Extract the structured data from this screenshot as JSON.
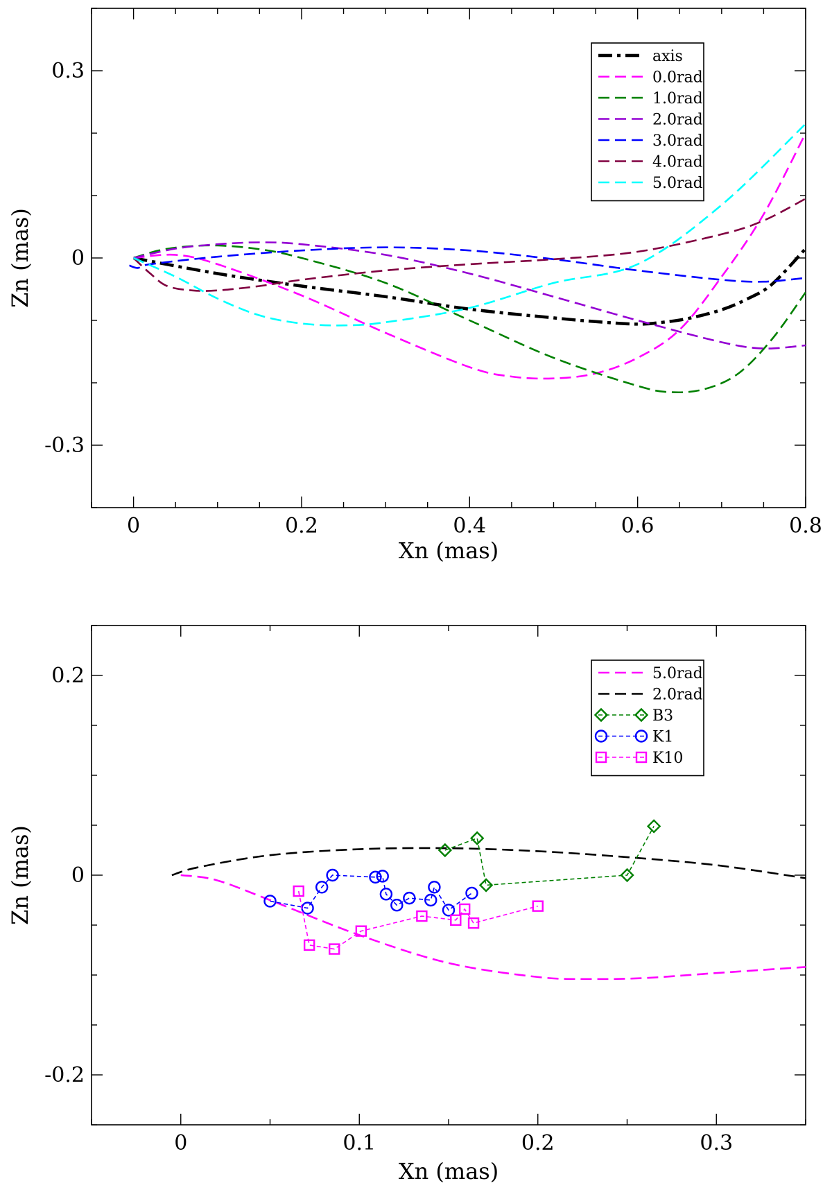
{
  "chart_data": [
    {
      "type": "line",
      "xlabel": "Xn (mas)",
      "ylabel": "Zn (mas)",
      "xlim": [
        -0.05,
        0.8
      ],
      "ylim": [
        -0.4,
        0.4
      ],
      "xticks": [
        0,
        0.2,
        0.4,
        0.6,
        0.8
      ],
      "xtick_labels": [
        "0",
        "0.2",
        "0.4",
        "0.6",
        "0.8"
      ],
      "xminor": 0.05,
      "yticks": [
        -0.3,
        0,
        0.3
      ],
      "ytick_labels": [
        "-0.3",
        "0",
        "0.3"
      ],
      "yminor": 0.1,
      "legend_position": "top-right",
      "series": [
        {
          "name": "axis",
          "color": "#000000",
          "style": "dashdot",
          "x": [
            0,
            0.1,
            0.2,
            0.3,
            0.4,
            0.5,
            0.55,
            0.6,
            0.63,
            0.66,
            0.7,
            0.73,
            0.76,
            0.8
          ],
          "y": [
            0,
            -0.025,
            -0.045,
            -0.062,
            -0.082,
            -0.096,
            -0.102,
            -0.106,
            -0.103,
            -0.097,
            -0.083,
            -0.066,
            -0.042,
            0.015
          ]
        },
        {
          "name": "0.0rad",
          "color": "#ff00ff",
          "style": "dash",
          "x": [
            0,
            0.05,
            0.1,
            0.2,
            0.3,
            0.4,
            0.45,
            0.5,
            0.55,
            0.6,
            0.65,
            0.7,
            0.75,
            0.8
          ],
          "y": [
            0,
            0.005,
            -0.01,
            -0.06,
            -0.12,
            -0.175,
            -0.19,
            -0.193,
            -0.185,
            -0.16,
            -0.115,
            -0.03,
            0.07,
            0.2
          ]
        },
        {
          "name": "1.0rad",
          "color": "#008000",
          "style": "dash",
          "x": [
            0,
            0.03,
            0.06,
            0.1,
            0.15,
            0.2,
            0.3,
            0.4,
            0.5,
            0.6,
            0.64,
            0.68,
            0.72,
            0.76,
            0.8
          ],
          "y": [
            0,
            0.012,
            0.018,
            0.02,
            0.014,
            0,
            -0.04,
            -0.1,
            -0.16,
            -0.205,
            -0.215,
            -0.21,
            -0.185,
            -0.13,
            -0.055
          ]
        },
        {
          "name": "2.0rad",
          "color": "#9400d3",
          "style": "dash",
          "x": [
            0,
            0.05,
            0.1,
            0.15,
            0.2,
            0.3,
            0.4,
            0.5,
            0.6,
            0.7,
            0.75,
            0.8
          ],
          "y": [
            0,
            0.015,
            0.022,
            0.025,
            0.022,
            0.005,
            -0.025,
            -0.062,
            -0.1,
            -0.135,
            -0.145,
            -0.14
          ]
        },
        {
          "name": "3.0rad",
          "color": "#0000ff",
          "style": "dash",
          "x": [
            -0.005,
            0.005,
            0.02,
            0.1,
            0.2,
            0.3,
            0.4,
            0.5,
            0.6,
            0.7,
            0.75,
            0.8
          ],
          "y": [
            -0.012,
            -0.016,
            -0.01,
            0.002,
            0.012,
            0.017,
            0.012,
            -0.002,
            -0.02,
            -0.035,
            -0.038,
            -0.032
          ]
        },
        {
          "name": "4.0rad",
          "color": "#800040",
          "style": "dash",
          "x": [
            0,
            0.02,
            0.04,
            0.07,
            0.1,
            0.15,
            0.2,
            0.3,
            0.4,
            0.5,
            0.6,
            0.7,
            0.75,
            0.8
          ],
          "y": [
            0,
            -0.025,
            -0.045,
            -0.052,
            -0.052,
            -0.045,
            -0.035,
            -0.02,
            -0.01,
            -0.002,
            0.01,
            0.038,
            0.06,
            0.095
          ]
        },
        {
          "name": "5.0rad",
          "color": "#00ffff",
          "style": "dash",
          "x": [
            0,
            0.05,
            0.1,
            0.15,
            0.2,
            0.25,
            0.3,
            0.4,
            0.5,
            0.6,
            0.7,
            0.8
          ],
          "y": [
            0,
            -0.03,
            -0.065,
            -0.092,
            -0.105,
            -0.108,
            -0.103,
            -0.08,
            -0.04,
            -0.01,
            0.085,
            0.215
          ]
        }
      ]
    },
    {
      "type": "scatter",
      "xlabel": "Xn (mas)",
      "ylabel": "Zn (mas)",
      "xlim": [
        -0.05,
        0.35
      ],
      "ylim": [
        -0.25,
        0.25
      ],
      "xticks": [
        0,
        0.1,
        0.2,
        0.3
      ],
      "xtick_labels": [
        "0",
        "0.1",
        "0.2",
        "0.3"
      ],
      "xminor": 0.05,
      "yticks": [
        -0.2,
        0,
        0.2
      ],
      "ytick_labels": [
        "-0.2",
        "0",
        "0.2"
      ],
      "yminor": 0.05,
      "legend_position": "top-right",
      "series": [
        {
          "name": "5.0rad",
          "color": "#ff00ff",
          "style": "dash",
          "x": [
            0,
            0.02,
            0.05,
            0.1,
            0.15,
            0.2,
            0.23,
            0.26,
            0.3,
            0.35
          ],
          "y": [
            0,
            -0.005,
            -0.025,
            -0.06,
            -0.088,
            -0.102,
            -0.104,
            -0.103,
            -0.098,
            -0.092
          ]
        },
        {
          "name": "2.0rad",
          "color": "#000000",
          "style": "dash",
          "x": [
            -0.005,
            0.01,
            0.05,
            0.1,
            0.15,
            0.2,
            0.25,
            0.3,
            0.35
          ],
          "y": [
            0,
            0.008,
            0.02,
            0.026,
            0.027,
            0.024,
            0.018,
            0.01,
            -0.003
          ]
        },
        {
          "name": "B3",
          "color": "#008000",
          "style": "dash-marker",
          "marker": "diamond",
          "x": [
            0.148,
            0.166,
            0.171,
            0.25,
            0.265
          ],
          "y": [
            0.025,
            0.037,
            -0.01,
            0.0,
            0.049
          ]
        },
        {
          "name": "K1",
          "color": "#0000ff",
          "style": "dash-marker",
          "marker": "circle",
          "x": [
            0.05,
            0.071,
            0.079,
            0.085,
            0.109,
            0.113,
            0.115,
            0.121,
            0.128,
            0.14,
            0.142,
            0.15,
            0.163
          ],
          "y": [
            -0.026,
            -0.033,
            -0.012,
            0.0,
            -0.002,
            -0.001,
            -0.019,
            -0.03,
            -0.023,
            -0.025,
            -0.012,
            -0.035,
            -0.018
          ]
        },
        {
          "name": "K10",
          "color": "#ff00ff",
          "style": "dash-marker",
          "marker": "square",
          "x": [
            0.066,
            0.072,
            0.086,
            0.101,
            0.135,
            0.154,
            0.159,
            0.164,
            0.2
          ],
          "y": [
            -0.016,
            -0.07,
            -0.074,
            -0.056,
            -0.041,
            -0.045,
            -0.034,
            -0.048,
            -0.031
          ]
        }
      ]
    }
  ]
}
